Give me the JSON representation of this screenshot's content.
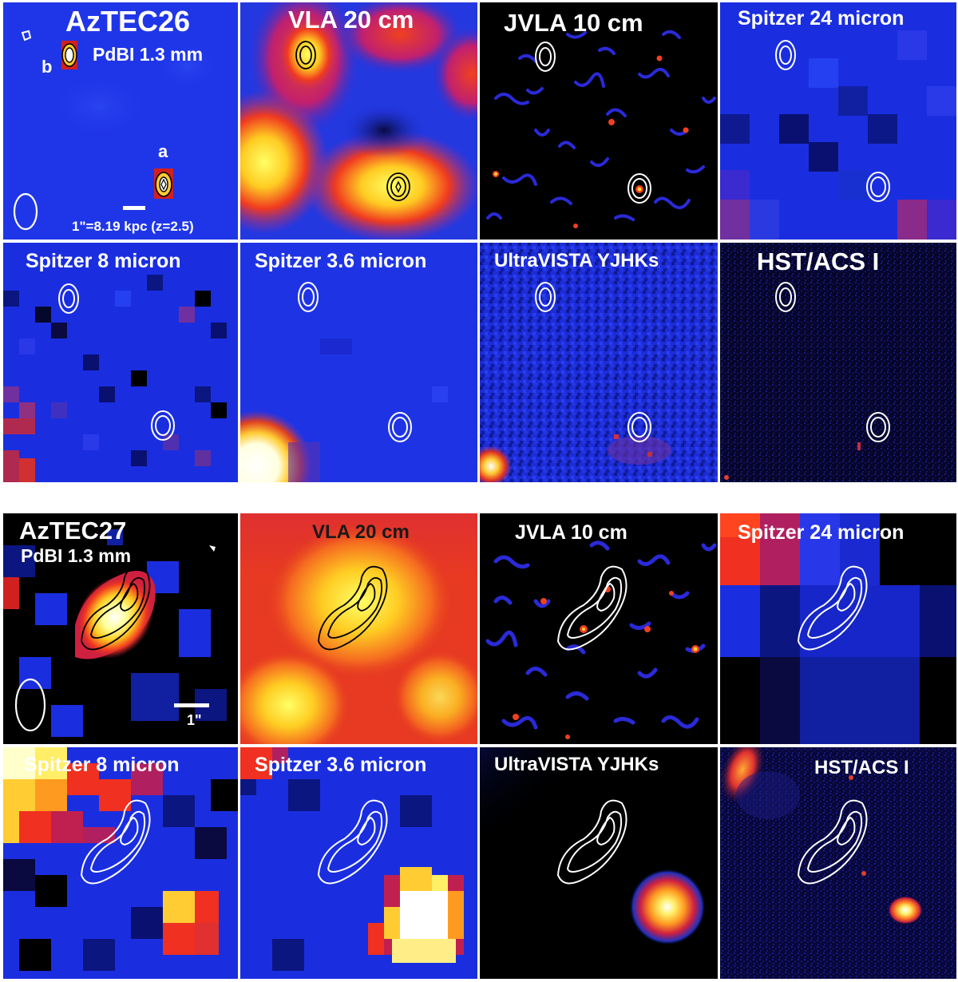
{
  "groups": [
    {
      "source": "AzTEC26",
      "panels": [
        {
          "title": "AzTEC26",
          "subtitle": "PdBI 1.3 mm",
          "sources": [
            "b",
            "a"
          ],
          "scalebar_label": "1\"=8.19 kpc (z=2.5)"
        },
        {
          "title": "VLA 20 cm"
        },
        {
          "title": "JVLA 10 cm"
        },
        {
          "title": "Spitzer 24 micron"
        },
        {
          "title": "Spitzer 8 micron"
        },
        {
          "title": "Spitzer 3.6 micron"
        },
        {
          "title": "UltraVISTA YJHKs"
        },
        {
          "title": "HST/ACS I"
        }
      ]
    },
    {
      "source": "AzTEC27",
      "panels": [
        {
          "title": "AzTEC27",
          "subtitle": "PdBI 1.3 mm",
          "scalebar_label": "1\""
        },
        {
          "title": "VLA 20 cm"
        },
        {
          "title": "JVLA 10 cm"
        },
        {
          "title": "Spitzer 24 micron"
        },
        {
          "title": "Spitzer 8 micron"
        },
        {
          "title": "Spitzer 3.6 micron"
        },
        {
          "title": "UltraVISTA YJHKs"
        },
        {
          "title": "HST/ACS I"
        }
      ]
    }
  ],
  "colors": {
    "background_blue": "#1a33e6",
    "black_bg": "#000000",
    "hot": "#ff3b1a",
    "contour_white": "#ffffff",
    "contour_black": "#000000"
  }
}
